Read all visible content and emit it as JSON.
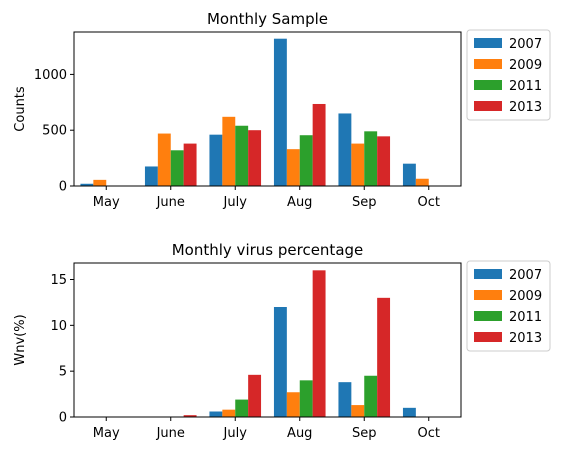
{
  "chart_data": [
    {
      "type": "bar",
      "title": "Monthly Sample",
      "xlabel": "",
      "ylabel": "Counts",
      "categories": [
        "May",
        "June",
        "July",
        "Aug",
        "Sep",
        "Oct"
      ],
      "ylim": [
        0,
        1380
      ],
      "yticks": [
        0,
        500,
        1000
      ],
      "legend": "outside-top-right",
      "series": [
        {
          "name": "2007",
          "color": "#1f77b4",
          "values": [
            20,
            175,
            460,
            1320,
            650,
            200
          ]
        },
        {
          "name": "2009",
          "color": "#ff7f0e",
          "values": [
            55,
            470,
            620,
            330,
            380,
            65
          ]
        },
        {
          "name": "2011",
          "color": "#2ca02c",
          "values": [
            0,
            320,
            540,
            455,
            490,
            0
          ]
        },
        {
          "name": "2013",
          "color": "#d62728",
          "values": [
            0,
            380,
            500,
            735,
            445,
            0
          ]
        }
      ]
    },
    {
      "type": "bar",
      "title": "Monthly virus percentage",
      "xlabel": "",
      "ylabel": "Wnv(%)",
      "categories": [
        "May",
        "June",
        "July",
        "Aug",
        "Sep",
        "Oct"
      ],
      "ylim": [
        0,
        16.8
      ],
      "yticks": [
        0,
        5,
        10,
        15
      ],
      "legend": "outside-top-right",
      "series": [
        {
          "name": "2007",
          "color": "#1f77b4",
          "values": [
            0,
            0,
            0.6,
            12.0,
            3.8,
            1.0
          ]
        },
        {
          "name": "2009",
          "color": "#ff7f0e",
          "values": [
            0,
            0,
            0.8,
            2.7,
            1.3,
            0
          ]
        },
        {
          "name": "2011",
          "color": "#2ca02c",
          "values": [
            0,
            0,
            1.9,
            4.0,
            4.5,
            0
          ]
        },
        {
          "name": "2013",
          "color": "#d62728",
          "values": [
            0,
            0.2,
            4.6,
            16.0,
            13.0,
            0
          ]
        }
      ]
    }
  ]
}
